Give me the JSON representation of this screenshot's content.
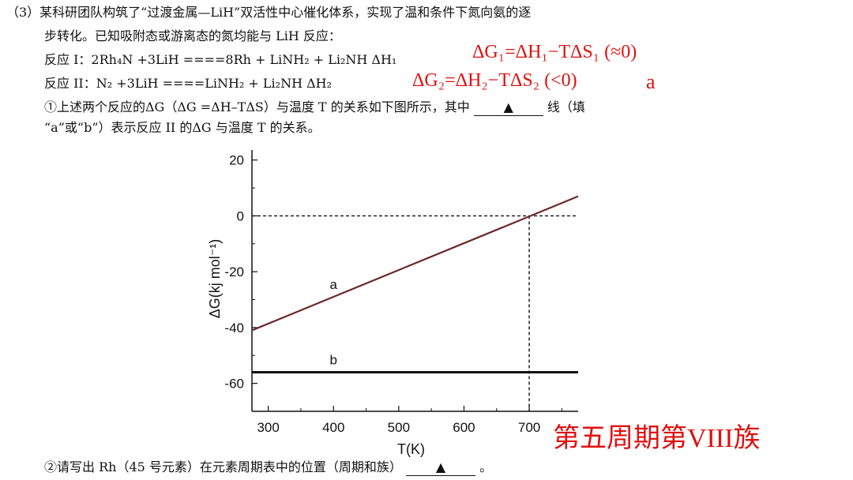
{
  "question": {
    "line1": "（3）某科研团队构筑了“过渡金属—LiH”双活性中心催化体系，实现了温和条件下氮向氨的逐",
    "line2": "步转化。已知吸附态或游离态的氮均能与 LiH 反应：",
    "reaction1": "反应 I：2Rh₄N +3LiH ====8Rh + LiNH₂ + Li₂NH    ΔH₁",
    "reaction2": "反应 II：N₂ +3LiH ====LiNH₂ + Li₂NH    ΔH₂",
    "sub1": "①上述两个反应的ΔG（ΔG =ΔH–TΔS）与温度 T 的关系如下图所示，其中",
    "sub1_blank": "▲",
    "sub1_after": "线（填",
    "sub1_line2": "“a”或“b”）表示反应 II 的ΔG 与温度 T 的关系。",
    "sub2": "②请写出 Rh（45 号元素）在元素周期表中的位置（周期和族）",
    "sub2_blank": "▲",
    "sub2_end": "。"
  },
  "annotations": {
    "eq1": "ΔG₁=ΔH₁−TΔS₁ (≈0)",
    "eq2": "ΔG₂=ΔH₂−TΔS₂ (<0)",
    "answer1": "a",
    "answer2": "第五周期第VIII族",
    "color": "#e01010"
  },
  "chart_data": {
    "type": "line",
    "xlabel": "T(K)",
    "ylabel": "ΔG(kj mol⁻¹)",
    "xlim": [
      275,
      775
    ],
    "ylim": [
      -70,
      25
    ],
    "x_ticks": [
      300,
      400,
      500,
      600,
      700
    ],
    "y_ticks": [
      20,
      0,
      -20,
      -40,
      -60
    ],
    "series": [
      {
        "name": "a",
        "x": [
          275,
          775
        ],
        "y": [
          -41,
          7
        ],
        "color": "#6b2a2a"
      },
      {
        "name": "b",
        "x": [
          275,
          775
        ],
        "y": [
          -56,
          -56
        ],
        "color": "#111111"
      }
    ],
    "reference_lines": {
      "hline_y": 0,
      "vline_x": 700
    }
  }
}
